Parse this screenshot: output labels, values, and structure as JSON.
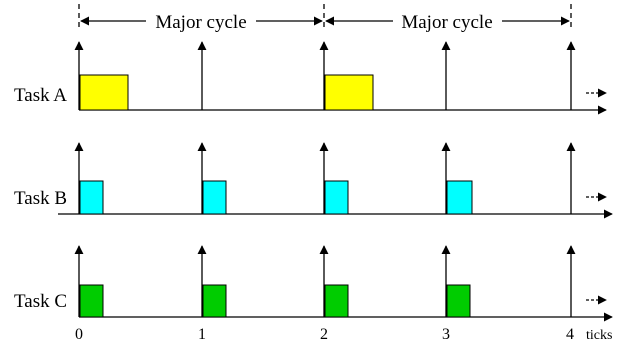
{
  "cycles": [
    {
      "label": "Major cycle",
      "from": 0,
      "to": 2
    },
    {
      "label": "Major cycle",
      "from": 2,
      "to": 4
    }
  ],
  "tasks": [
    {
      "name": "Task A",
      "color": "#ffff00",
      "period_ticks": 2,
      "duration_ticks": 0.4
    },
    {
      "name": "Task B",
      "color": "#00ffff",
      "period_ticks": 1,
      "duration_ticks": 0.2
    },
    {
      "name": "Task C",
      "color": "#00cc00",
      "period_ticks": 1,
      "duration_ticks": 0.2
    }
  ],
  "ticks": [
    "0",
    "1",
    "2",
    "3",
    "4"
  ],
  "x_unit": "ticks",
  "arrow_ticks": [
    0,
    1,
    2,
    3,
    4
  ]
}
